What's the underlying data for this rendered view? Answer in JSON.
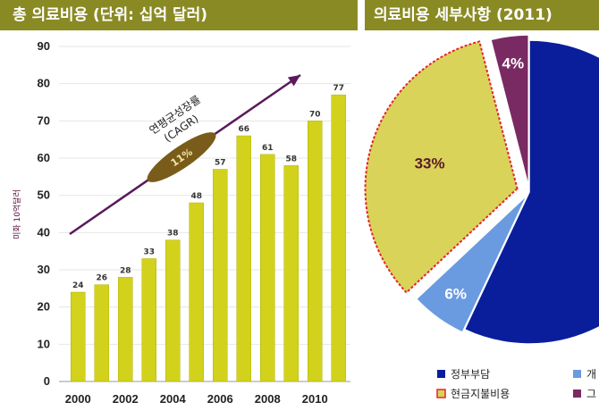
{
  "header_left": "총 의료비용 (단위: 십억 달러)",
  "header_right": "의료비용 세부사항 (2011)",
  "colors": {
    "header_bg": "#8a8a24",
    "bar": "#d2d21c",
    "bar_edge": "#b3b30c",
    "arrow": "#5a1a5a",
    "ellipse": "#7a5c1a",
    "pie_government": "#0a1e9c",
    "pie_out_of_pocket": "#d9d35a",
    "pie_private": "#6a9be0",
    "pie_other": "#7a2a62"
  },
  "chart_data": [
    {
      "type": "bar",
      "ylabel": "미화 10억달러",
      "ylim": [
        0,
        90
      ],
      "yticks": [
        0,
        10,
        20,
        30,
        40,
        50,
        60,
        70,
        80,
        90
      ],
      "categories": [
        "2000",
        "2001",
        "2002",
        "2003",
        "2004",
        "2005",
        "2006",
        "2007",
        "2008",
        "2009",
        "2010",
        "2011"
      ],
      "values": [
        24,
        26,
        28,
        33,
        38,
        48,
        57,
        66,
        61,
        58,
        70,
        77
      ],
      "xtick_labels": [
        "2000",
        "2002",
        "2004",
        "2006",
        "2008",
        "2010"
      ],
      "annotation": {
        "title_line1": "연평균성장률",
        "title_line2": "(CAGR)",
        "value": "11%"
      },
      "grid": true
    },
    {
      "type": "pie",
      "slices": [
        {
          "key": "government",
          "label": "정부부담",
          "percent": 57,
          "value_label": ""
        },
        {
          "key": "private",
          "label": "개",
          "percent": 6,
          "value_label": "6%"
        },
        {
          "key": "out_of_pocket",
          "label": "현금지불비용",
          "percent": 33,
          "value_label": "33%"
        },
        {
          "key": "other",
          "label": "그",
          "percent": 4,
          "value_label": "4%"
        }
      ],
      "legend_position": "bottom"
    }
  ]
}
